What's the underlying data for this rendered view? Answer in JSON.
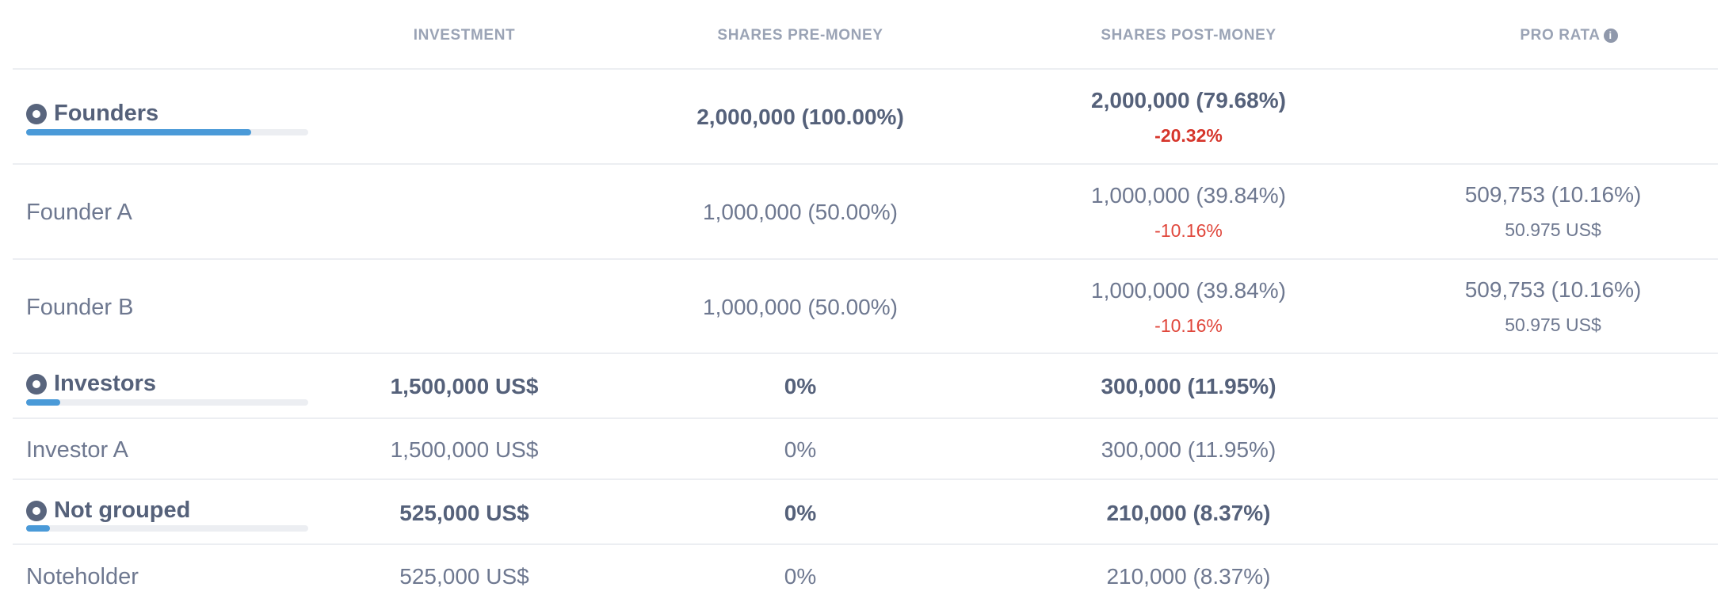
{
  "headers": {
    "investment": "INVESTMENT",
    "shares_pre": "SHARES PRE-MONEY",
    "shares_post": "SHARES POST-MONEY",
    "pro_rata": "PRO RATA"
  },
  "groups": [
    {
      "name": "Founders",
      "progress_percent": 79.68,
      "investment": "",
      "shares_pre": "2,000,000 (100.00%)",
      "shares_post": "2,000,000 (79.68%)",
      "post_delta": "-20.32%",
      "rows": [
        {
          "name": "Founder A",
          "investment": "",
          "shares_pre": "1,000,000 (50.00%)",
          "shares_post": "1,000,000 (39.84%)",
          "post_delta": "-10.16%",
          "pro_rata": "509,753 (10.16%)",
          "pro_rata_amount": "50.975 US$"
        },
        {
          "name": "Founder B",
          "investment": "",
          "shares_pre": "1,000,000 (50.00%)",
          "shares_post": "1,000,000 (39.84%)",
          "post_delta": "-10.16%",
          "pro_rata": "509,753 (10.16%)",
          "pro_rata_amount": "50.975 US$"
        }
      ]
    },
    {
      "name": "Investors",
      "progress_percent": 11.95,
      "investment": "1,500,000 US$",
      "shares_pre": "0%",
      "shares_post": "300,000 (11.95%)",
      "rows": [
        {
          "name": "Investor A",
          "investment": "1,500,000 US$",
          "shares_pre": "0%",
          "shares_post": "300,000 (11.95%)"
        }
      ]
    },
    {
      "name": "Not grouped",
      "progress_percent": 8.37,
      "investment": "525,000 US$",
      "shares_pre": "0%",
      "shares_post": "210,000 (8.37%)",
      "rows": [
        {
          "name": "Noteholder",
          "investment": "525,000 US$",
          "shares_pre": "0%",
          "shares_post": "210,000 (8.37%)"
        }
      ]
    }
  ],
  "colors": {
    "progress_fill": "#4a9ad8",
    "delta_negative": "#e0473c"
  }
}
